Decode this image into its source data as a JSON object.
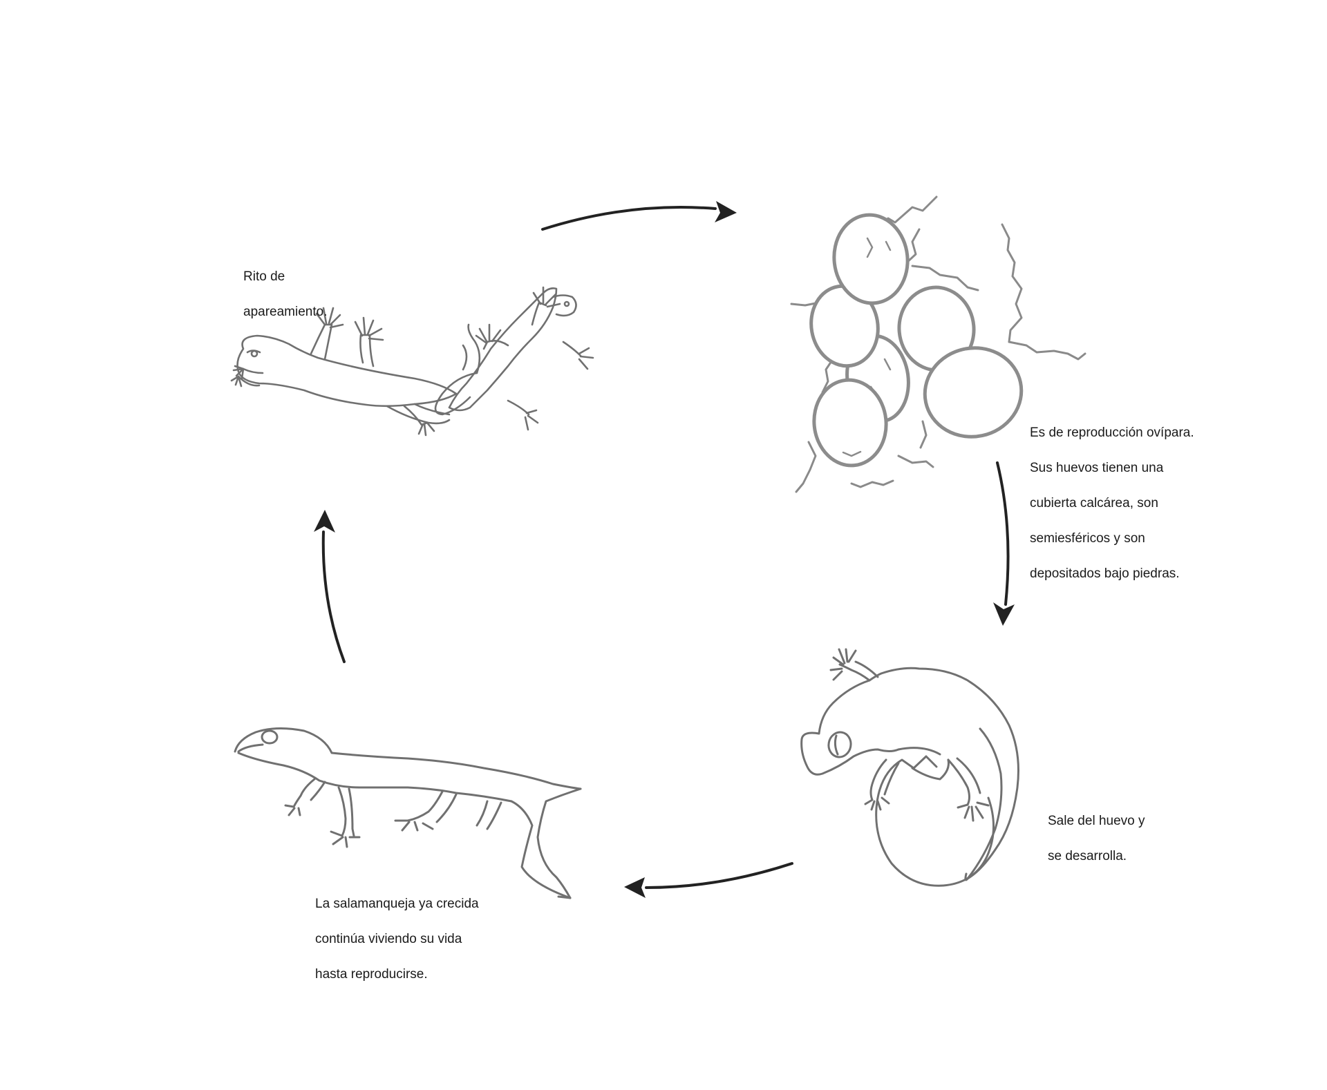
{
  "colors": {
    "line_art": "#707070",
    "egg_outline": "#8c8c8c",
    "crack_line": "#8a8a8a",
    "arrow": "#222222",
    "text": "#1a1a1a",
    "background": "#ffffff"
  },
  "stages": [
    {
      "id": "mating",
      "icon": "mating-geckos-icon",
      "caption_lines": [
        "Rito de",
        "apareamiento."
      ]
    },
    {
      "id": "eggs",
      "icon": "egg-cluster-icon",
      "caption_lines": [
        "Es de reproducción ovípara.",
        "Sus huevos tienen una",
        "cubierta calcárea, son",
        "semiesféricos y son",
        "depositados bajo piedras."
      ]
    },
    {
      "id": "hatching",
      "icon": "hatching-gecko-icon",
      "caption_lines": [
        "Sale del huevo y",
        "se desarrolla."
      ]
    },
    {
      "id": "adult",
      "icon": "adult-gecko-icon",
      "caption_lines": [
        "La salamanqueja ya crecida",
        "continúa viviendo su vida",
        "hasta reproducirse."
      ]
    }
  ],
  "cycle": {
    "arrows": [
      {
        "from": "mating",
        "to": "eggs",
        "icon": "arrow-right-icon"
      },
      {
        "from": "eggs",
        "to": "hatching",
        "icon": "arrow-down-icon"
      },
      {
        "from": "hatching",
        "to": "adult",
        "icon": "arrow-left-icon"
      },
      {
        "from": "adult",
        "to": "mating",
        "icon": "arrow-up-icon"
      }
    ]
  }
}
